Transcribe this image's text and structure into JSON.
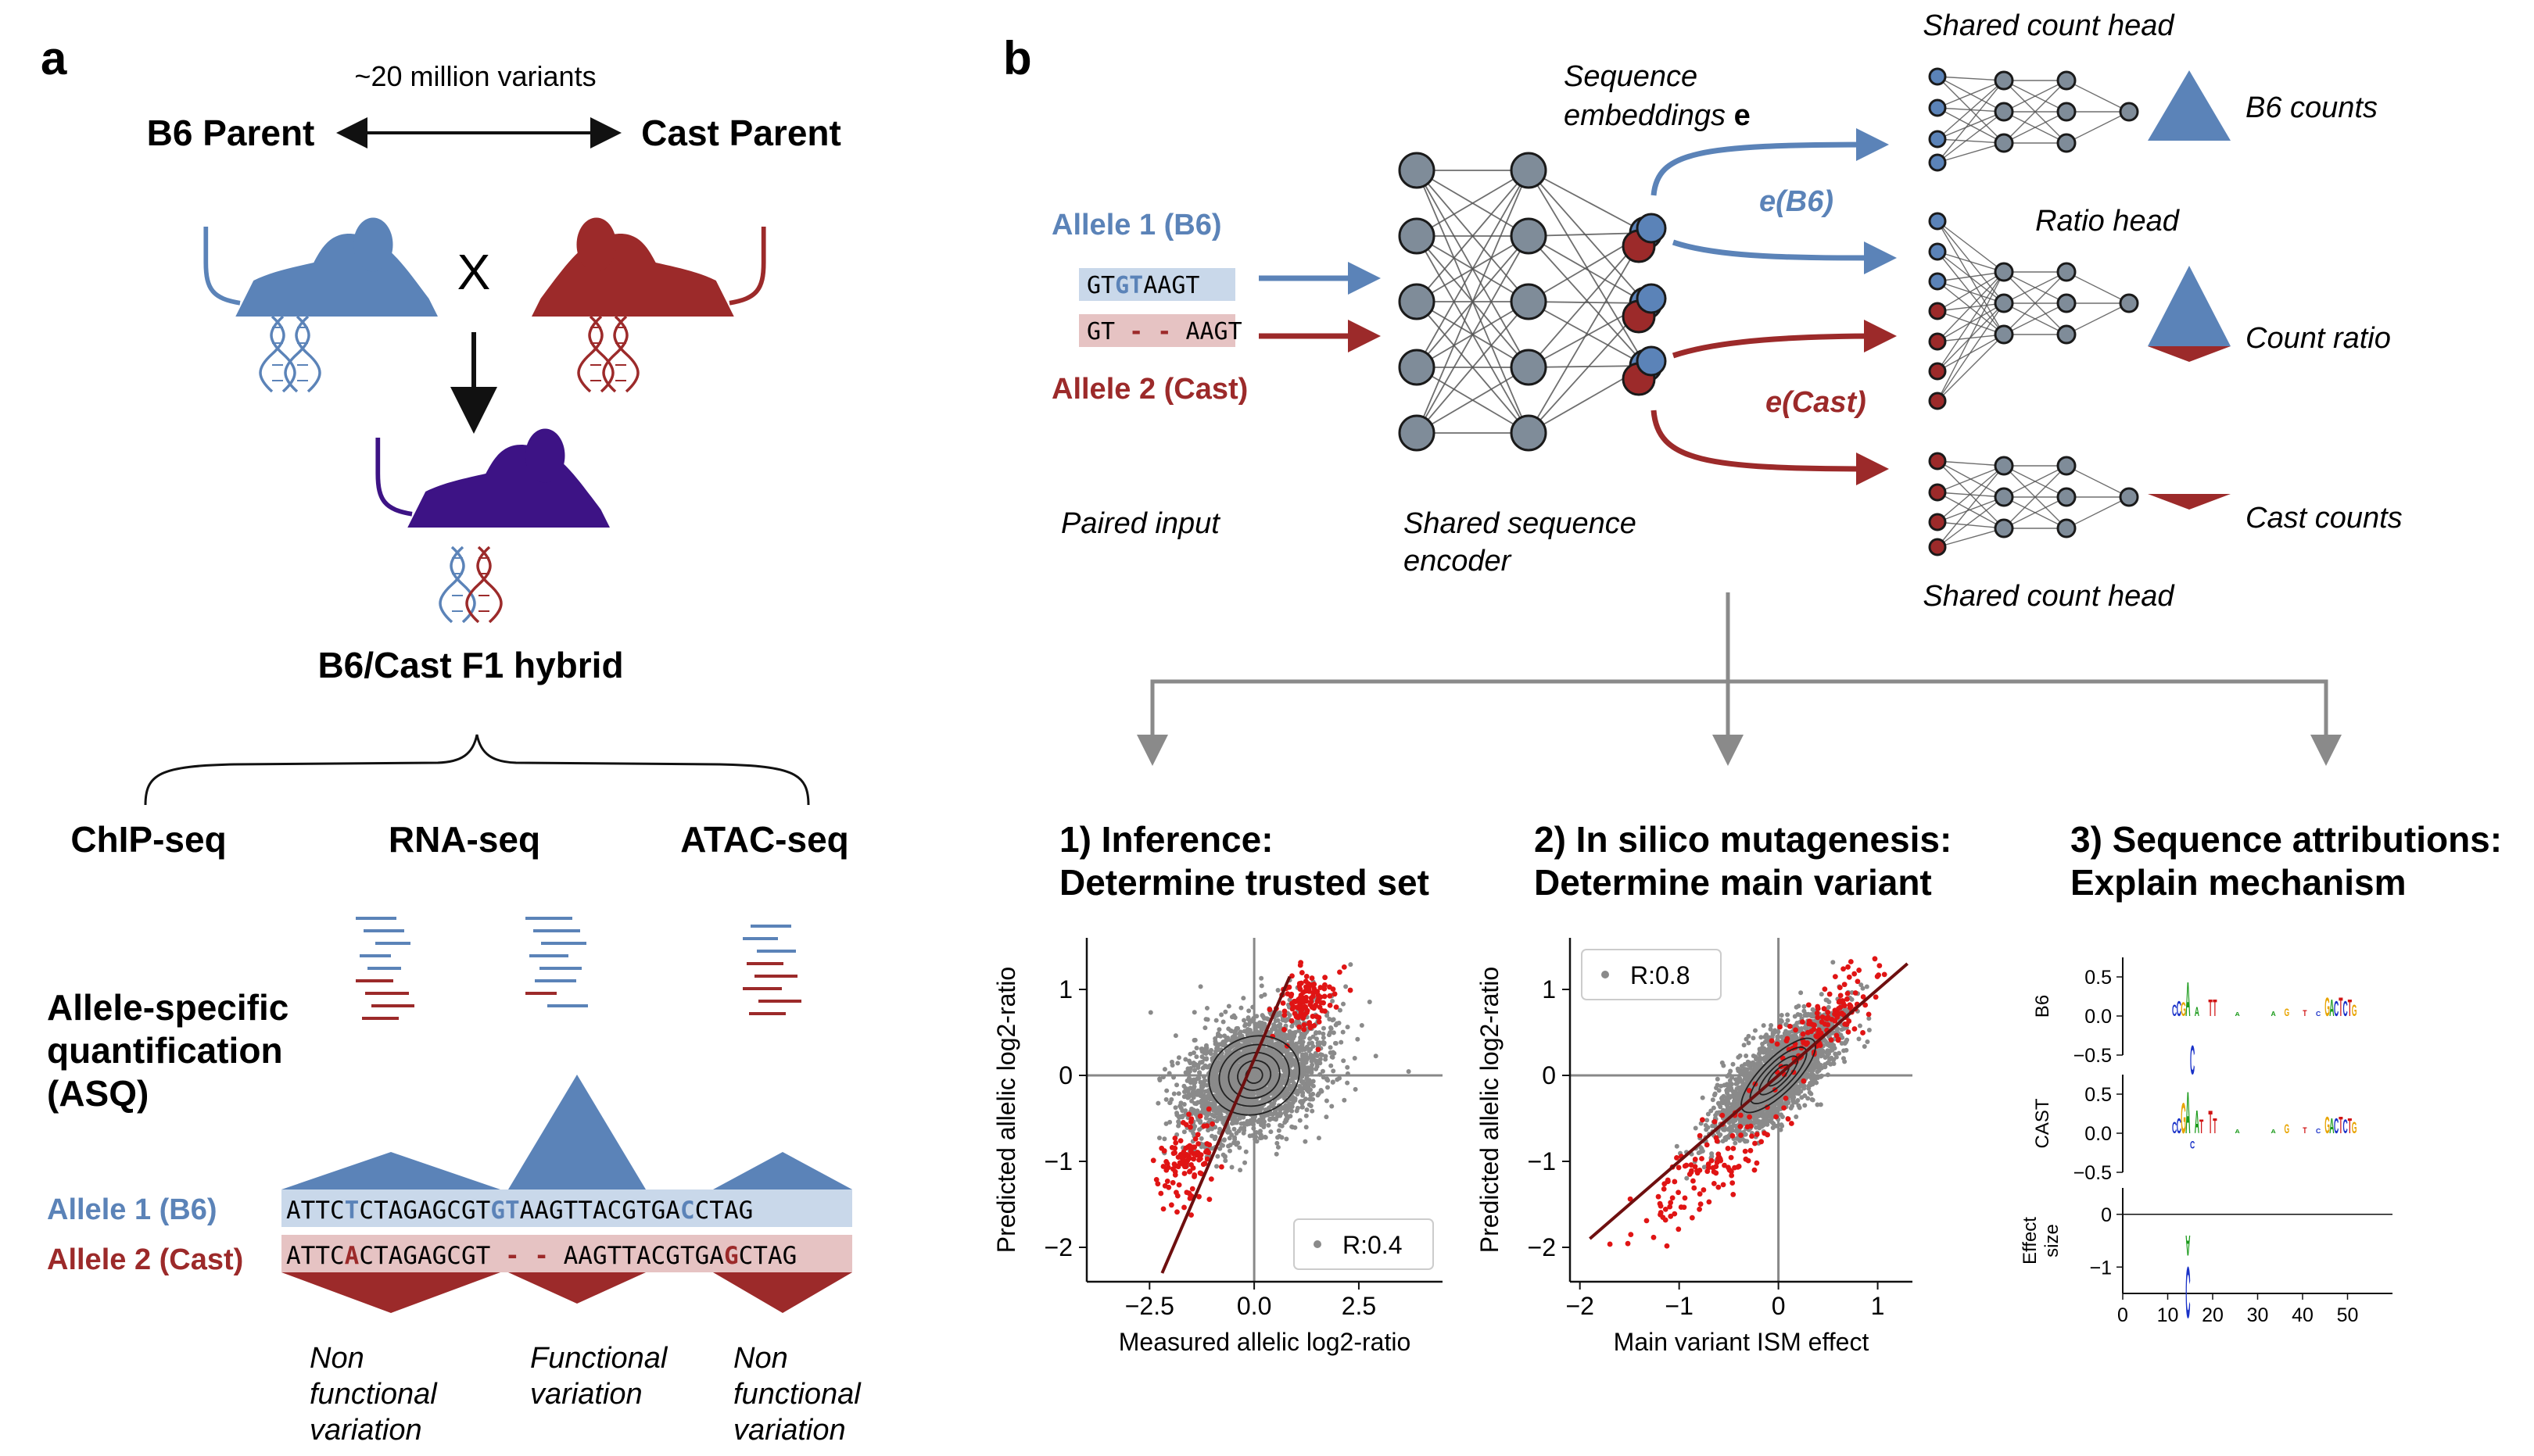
{
  "colors": {
    "b6": "#5b83b8",
    "b6_light": "#c9d8ea",
    "cast": "#9c2a2a",
    "cast_light": "#e6c3c3",
    "hybrid": "#3d1385",
    "node": "#7f8c99",
    "edge": "#555555",
    "gray": "#8a8a8a",
    "red_point": "#e01414"
  },
  "panel_a": {
    "letter": "a",
    "variants": "~20 million variants",
    "b6_parent": "B6 Parent",
    "cast_parent": "Cast Parent",
    "cross": "X",
    "hybrid": "B6/Cast F1 hybrid",
    "assays": [
      "ChIP-seq",
      "RNA-seq",
      "ATAC-seq"
    ],
    "asq_lines": [
      "Allele-specific",
      "quantification",
      "(ASQ)"
    ],
    "allele1_label": "Allele 1 (B6)",
    "allele2_label": "Allele 2 (Cast)",
    "seq1": [
      {
        "t": "ATTC",
        "h": false
      },
      {
        "t": "T",
        "h": true
      },
      {
        "t": "CTAGAGCGT",
        "h": false
      },
      {
        "t": "GT",
        "h": true
      },
      {
        "t": "AAGTTACGTGA",
        "h": false
      },
      {
        "t": "C",
        "h": true
      },
      {
        "t": "CTAG",
        "h": false
      }
    ],
    "seq2": [
      {
        "t": "ATTC",
        "h": false
      },
      {
        "t": "A",
        "h": true
      },
      {
        "t": "CTAGAGCGT",
        "h": false
      },
      {
        "t": " - - ",
        "h": true
      },
      {
        "t": "AAGTTACGTGA",
        "h": false
      },
      {
        "t": "G",
        "h": true
      },
      {
        "t": "CTAG",
        "h": false
      }
    ],
    "variation_notes": [
      [
        "Non",
        "functional",
        "variation"
      ],
      [
        "Functional",
        "variation"
      ],
      [
        "Non",
        "functional",
        "variation"
      ]
    ]
  },
  "panel_b": {
    "letter": "b",
    "allele1": "Allele 1 (B6)",
    "allele2": "Allele 2 (Cast)",
    "seq1": [
      {
        "t": "GT",
        "h": false
      },
      {
        "t": "GT",
        "h": true
      },
      {
        "t": "AAGT",
        "h": false
      }
    ],
    "seq2": [
      {
        "t": "GT",
        "h": false
      },
      {
        "t": " - - ",
        "h": true
      },
      {
        "t": "AAGT",
        "h": false
      }
    ],
    "paired_input": "Paired input",
    "encoder": [
      "Shared sequence",
      "encoder"
    ],
    "embeddings": [
      "Sequence",
      "embeddings "
    ],
    "embeddings_bold": "e",
    "e_b6": "e(B6)",
    "e_cast": "e(Cast)",
    "count_head_top": "Shared count head",
    "ratio_head": "Ratio head",
    "count_head_bottom": "Shared count head",
    "b6_counts": "B6 counts",
    "count_ratio": "Count ratio",
    "cast_counts": "Cast counts",
    "task1": [
      "1) Inference:",
      "Determine trusted set"
    ],
    "task2": [
      "2) In silico mutagenesis:",
      "Determine main variant"
    ],
    "task3": [
      "3) Sequence attributions:",
      "Explain mechanism"
    ]
  },
  "chart_data": [
    {
      "type": "scatter",
      "xlabel": "Measured allelic log2-ratio",
      "ylabel": "Predicted allelic log2-ratio",
      "xlim": [
        -4,
        4.5
      ],
      "ylim": [
        -2.4,
        1.6
      ],
      "xticks": [
        -2.5,
        0.0,
        2.5
      ],
      "xtick_labels": [
        "−2.5",
        "0.0",
        "2.5"
      ],
      "yticks": [
        -2,
        -1,
        0,
        1
      ],
      "ytick_labels": [
        "−2",
        "−1",
        "0",
        "1"
      ],
      "legend": "R:0.4",
      "legend_position": "lower-right",
      "fit_line": [
        [
          -2.2,
          -2.3
        ],
        [
          0.85,
          1.15
        ]
      ],
      "clusters": [
        {
          "color": "gray",
          "n": 2600,
          "cx": 0.0,
          "cy": 0.0,
          "sx": 0.8,
          "sy": 0.35,
          "rho": 0.35,
          "seed": 11
        },
        {
          "color": "red",
          "n": 120,
          "cx": 1.3,
          "cy": 0.85,
          "sx": 0.35,
          "sy": 0.2,
          "rho": 0.3,
          "seed": 12
        },
        {
          "color": "red",
          "n": 110,
          "cx": -1.6,
          "cy": -1.0,
          "sx": 0.35,
          "sy": 0.28,
          "rho": 0.4,
          "seed": 13
        }
      ],
      "contours": [
        {
          "cx": 0.0,
          "cy": 0.0,
          "rx": 1.1,
          "ry": 0.45,
          "angle": 20
        },
        {
          "cx": 0.0,
          "cy": 0.0,
          "rx": 0.85,
          "ry": 0.35,
          "angle": 20
        },
        {
          "cx": 0.0,
          "cy": 0.0,
          "rx": 0.62,
          "ry": 0.26,
          "angle": 20
        },
        {
          "cx": 0.0,
          "cy": 0.0,
          "rx": 0.4,
          "ry": 0.17,
          "angle": 20
        },
        {
          "cx": 0.0,
          "cy": 0.0,
          "rx": 0.2,
          "ry": 0.09,
          "angle": 20
        }
      ]
    },
    {
      "type": "scatter",
      "xlabel": "Main variant ISM effect",
      "ylabel": "Predicted allelic log2-ratio",
      "xlim": [
        -2.1,
        1.35
      ],
      "ylim": [
        -2.4,
        1.6
      ],
      "xticks": [
        -2,
        -1,
        0,
        1
      ],
      "xtick_labels": [
        "−2",
        "−1",
        "0",
        "1"
      ],
      "yticks": [
        -2,
        -1,
        0,
        1
      ],
      "ytick_labels": [
        "−2",
        "−1",
        "0",
        "1"
      ],
      "legend": "R:0.8",
      "legend_position": "upper-left",
      "fit_line": [
        [
          -1.9,
          -1.9
        ],
        [
          1.3,
          1.3
        ]
      ],
      "clusters": [
        {
          "color": "gray",
          "n": 2400,
          "cx": 0.0,
          "cy": 0.0,
          "sx": 0.3,
          "sy": 0.35,
          "rho": 0.75,
          "seed": 21
        },
        {
          "color": "red",
          "n": 130,
          "cx": 0.45,
          "cy": 0.6,
          "sx": 0.25,
          "sy": 0.3,
          "rho": 0.8,
          "seed": 22
        },
        {
          "color": "red",
          "n": 120,
          "cx": -0.75,
          "cy": -1.15,
          "sx": 0.35,
          "sy": 0.35,
          "rho": 0.8,
          "seed": 23
        }
      ],
      "contours": [
        {
          "cx": 0.0,
          "cy": 0.0,
          "rx": 0.5,
          "ry": 0.2,
          "angle": 45
        },
        {
          "cx": 0.0,
          "cy": 0.0,
          "rx": 0.38,
          "ry": 0.15,
          "angle": 45
        },
        {
          "cx": 0.0,
          "cy": 0.0,
          "rx": 0.26,
          "ry": 0.1,
          "angle": 45
        },
        {
          "cx": 0.0,
          "cy": 0.0,
          "rx": 0.14,
          "ry": 0.06,
          "angle": 45
        }
      ]
    },
    {
      "type": "sequence-logo",
      "rows": [
        {
          "label": "B6",
          "ylim": [
            -0.5,
            0.75
          ],
          "yticks": [
            0.5,
            0.0,
            -0.5
          ],
          "ytick_labels": [
            "0.5",
            "0.0",
            "−0.5"
          ]
        },
        {
          "label": "CAST",
          "ylim": [
            -0.5,
            0.75
          ],
          "yticks": [
            0.5,
            0.0,
            -0.5
          ],
          "ytick_labels": [
            "0.5",
            "0.0",
            "−0.5"
          ]
        },
        {
          "label": "Effect size",
          "label_lines": [
            "Effect",
            "size"
          ],
          "ylim": [
            -1.5,
            0.5
          ],
          "yticks": [
            0,
            -1
          ],
          "ytick_labels": [
            "0",
            "−1"
          ]
        }
      ],
      "xlim": [
        0,
        60
      ],
      "xticks": [
        0,
        10,
        20,
        30,
        40,
        50
      ],
      "xtick_labels": [
        "0",
        "10",
        "20",
        "30",
        "40",
        "50"
      ],
      "b6_letters": [
        {
          "pos": 11,
          "base": "C",
          "h": 0.15
        },
        {
          "pos": 12,
          "base": "C",
          "h": 0.2
        },
        {
          "pos": 13,
          "base": "G",
          "h": 0.18
        },
        {
          "pos": 14,
          "base": "A",
          "h": 0.45
        },
        {
          "pos": 15,
          "base": "C",
          "h": -0.38
        },
        {
          "pos": 16,
          "base": "A",
          "h": 0.12
        },
        {
          "pos": 19,
          "base": "T",
          "h": 0.22
        },
        {
          "pos": 20,
          "base": "T",
          "h": 0.22
        },
        {
          "pos": 25,
          "base": "A",
          "h": 0.05
        },
        {
          "pos": 33,
          "base": "A",
          "h": 0.06
        },
        {
          "pos": 36,
          "base": "G",
          "h": 0.1
        },
        {
          "pos": 40,
          "base": "T",
          "h": 0.08
        },
        {
          "pos": 43,
          "base": "C",
          "h": 0.06
        },
        {
          "pos": 45,
          "base": "G",
          "h": 0.25
        },
        {
          "pos": 46,
          "base": "A",
          "h": 0.22
        },
        {
          "pos": 47,
          "base": "C",
          "h": 0.2
        },
        {
          "pos": 48,
          "base": "T",
          "h": 0.25
        },
        {
          "pos": 49,
          "base": "C",
          "h": 0.2
        },
        {
          "pos": 50,
          "base": "T",
          "h": 0.22
        },
        {
          "pos": 51,
          "base": "G",
          "h": 0.15
        }
      ],
      "cast_letters": [
        {
          "pos": 11,
          "base": "C",
          "h": 0.15
        },
        {
          "pos": 12,
          "base": "C",
          "h": 0.2
        },
        {
          "pos": 13,
          "base": "G",
          "h": 0.4
        },
        {
          "pos": 14,
          "base": "A",
          "h": 0.55
        },
        {
          "pos": 15,
          "base": "C",
          "h": -0.1
        },
        {
          "pos": 16,
          "base": "A",
          "h": 0.3
        },
        {
          "pos": 17,
          "base": "T",
          "h": 0.18
        },
        {
          "pos": 19,
          "base": "T",
          "h": 0.3
        },
        {
          "pos": 20,
          "base": "T",
          "h": 0.2
        },
        {
          "pos": 25,
          "base": "A",
          "h": 0.05
        },
        {
          "pos": 33,
          "base": "A",
          "h": 0.05
        },
        {
          "pos": 36,
          "base": "G",
          "h": 0.12
        },
        {
          "pos": 40,
          "base": "T",
          "h": 0.08
        },
        {
          "pos": 43,
          "base": "C",
          "h": 0.06
        },
        {
          "pos": 45,
          "base": "G",
          "h": 0.22
        },
        {
          "pos": 46,
          "base": "A",
          "h": 0.2
        },
        {
          "pos": 47,
          "base": "C",
          "h": 0.2
        },
        {
          "pos": 48,
          "base": "T",
          "h": 0.22
        },
        {
          "pos": 49,
          "base": "C",
          "h": 0.18
        },
        {
          "pos": 50,
          "base": "T",
          "h": 0.2
        },
        {
          "pos": 51,
          "base": "G",
          "h": 0.15
        }
      ],
      "effect_letters": [
        {
          "pos": 14,
          "base": "C",
          "h": -1.0
        },
        {
          "pos": 14,
          "base": "A",
          "h": -0.4
        }
      ]
    }
  ]
}
